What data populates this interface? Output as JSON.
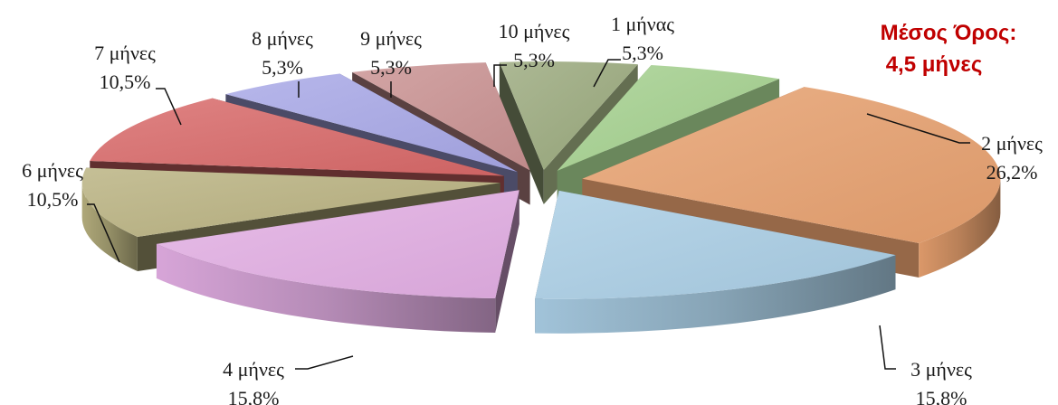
{
  "chart_data": {
    "type": "pie",
    "title": "",
    "annotation": {
      "line1": "Μέσος Όρος:",
      "line2": "4,5 μήνες",
      "color": "#c00000"
    },
    "slices": [
      {
        "label": "1 μήνας",
        "value": 5.3,
        "value_label": "5,3%",
        "color": "#a3d08d",
        "exploded": true
      },
      {
        "label": "2 μήνες",
        "value": 26.2,
        "value_label": "26,2%",
        "color": "#e6a06e",
        "exploded": true
      },
      {
        "label": "3 μήνες",
        "value": 15.8,
        "value_label": "15,8%",
        "color": "#a9cde4",
        "exploded": true
      },
      {
        "label": "4 μήνες",
        "value": 15.8,
        "value_label": "15,8%",
        "color": "#e2aee3",
        "exploded": true
      },
      {
        "label": "6 μήνες",
        "value": 10.5,
        "value_label": "10,5%",
        "color": "#b8b17f",
        "exploded": true
      },
      {
        "label": "7 μήνες",
        "value": 10.5,
        "value_label": "10,5%",
        "color": "#d86868",
        "exploded": true
      },
      {
        "label": "8 μήνες",
        "value": 5.3,
        "value_label": "5,3%",
        "color": "#a7a7e6",
        "exploded": true
      },
      {
        "label": "9 μήνες",
        "value": 5.3,
        "value_label": "5,3%",
        "color": "#c99191",
        "exploded": true
      },
      {
        "label": "10 μήνες",
        "value": 5.3,
        "value_label": "5,3%",
        "color": "#9aa97c",
        "exploded": true
      }
    ],
    "legend": "none"
  }
}
